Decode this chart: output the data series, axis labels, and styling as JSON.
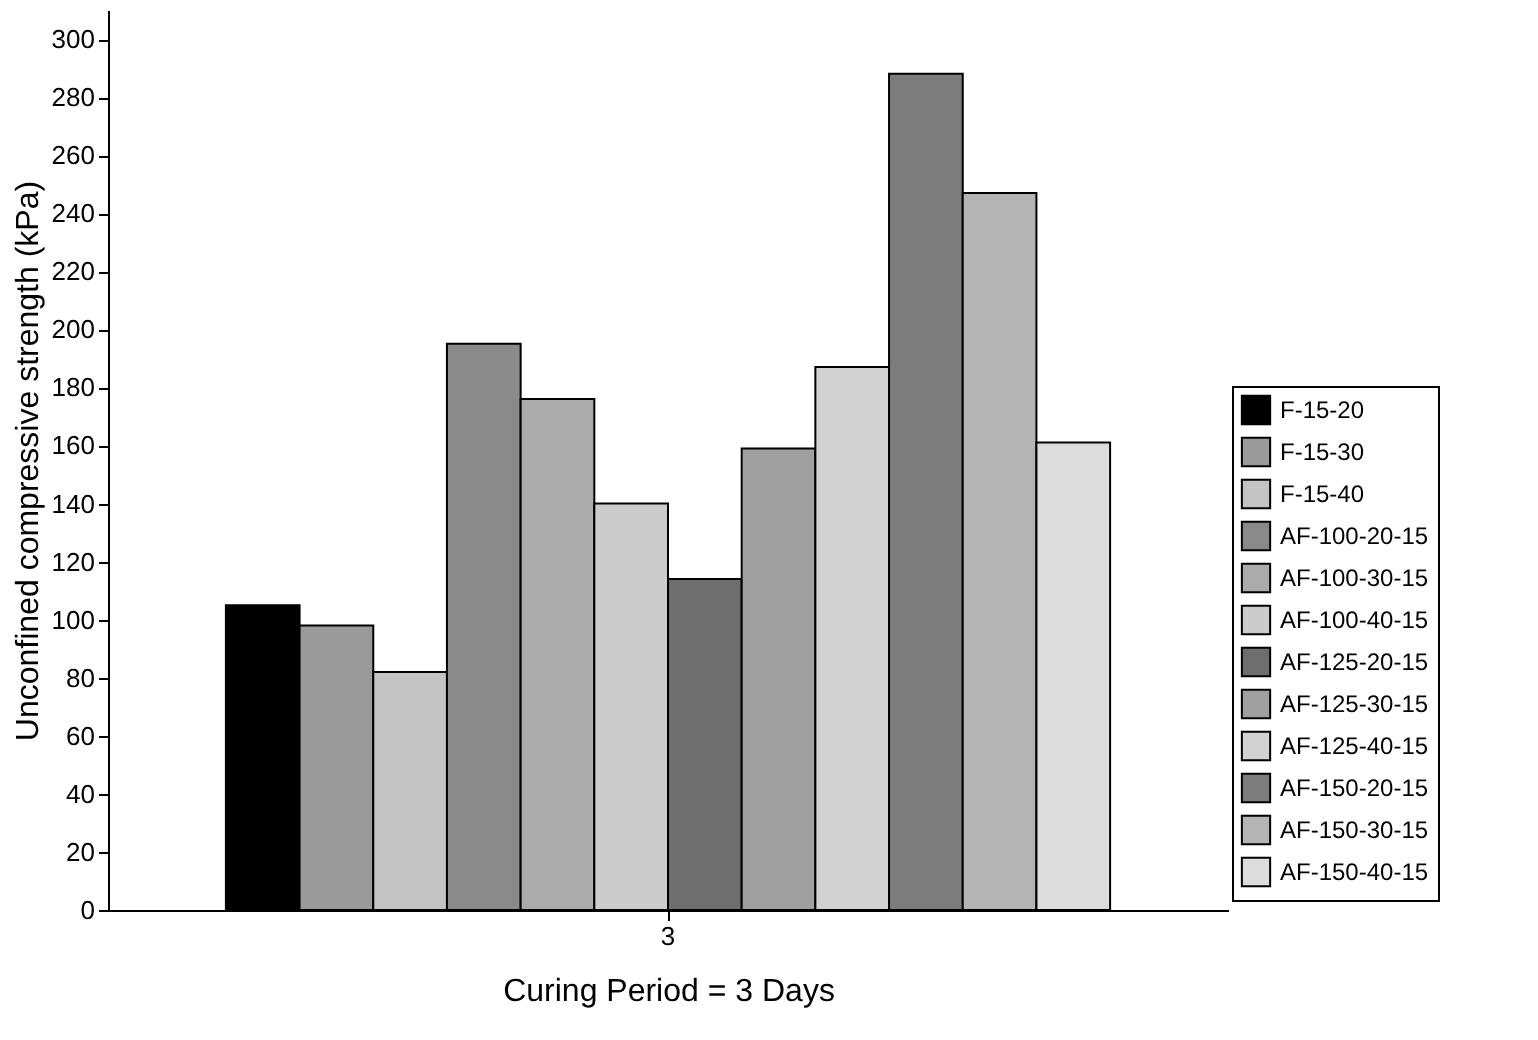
{
  "chart_data": {
    "type": "bar",
    "xlabel": "Curing Period = 3 Days",
    "ylabel": "Unconfined compressive strength (kPa)",
    "categories": [
      "3"
    ],
    "series": [
      {
        "name": "F-15-20",
        "color": "#000000",
        "values": [
          105
        ]
      },
      {
        "name": "F-15-30",
        "color": "#9a9a9a",
        "values": [
          98
        ]
      },
      {
        "name": "F-15-40",
        "color": "#c4c4c4",
        "values": [
          82
        ]
      },
      {
        "name": "AF-100-20-15",
        "color": "#8a8a8a",
        "values": [
          195
        ]
      },
      {
        "name": "AF-100-30-15",
        "color": "#ababab",
        "values": [
          176
        ]
      },
      {
        "name": "AF-100-40-15",
        "color": "#cccccc",
        "values": [
          140
        ]
      },
      {
        "name": "AF-125-20-15",
        "color": "#6e6e6e",
        "values": [
          114
        ]
      },
      {
        "name": "AF-125-30-15",
        "color": "#a0a0a0",
        "values": [
          159
        ]
      },
      {
        "name": "AF-125-40-15",
        "color": "#d2d2d2",
        "values": [
          187
        ]
      },
      {
        "name": "AF-150-20-15",
        "color": "#7c7c7c",
        "values": [
          288
        ]
      },
      {
        "name": "AF-150-30-15",
        "color": "#b4b4b4",
        "values": [
          247
        ]
      },
      {
        "name": "AF-150-40-15",
        "color": "#dcdcdc",
        "values": [
          161
        ]
      }
    ],
    "ylim": [
      0,
      310
    ],
    "yticks": [
      0,
      20,
      40,
      60,
      80,
      100,
      120,
      140,
      160,
      180,
      200,
      220,
      240,
      260,
      280,
      300
    ],
    "grid": false,
    "legend": "right"
  }
}
